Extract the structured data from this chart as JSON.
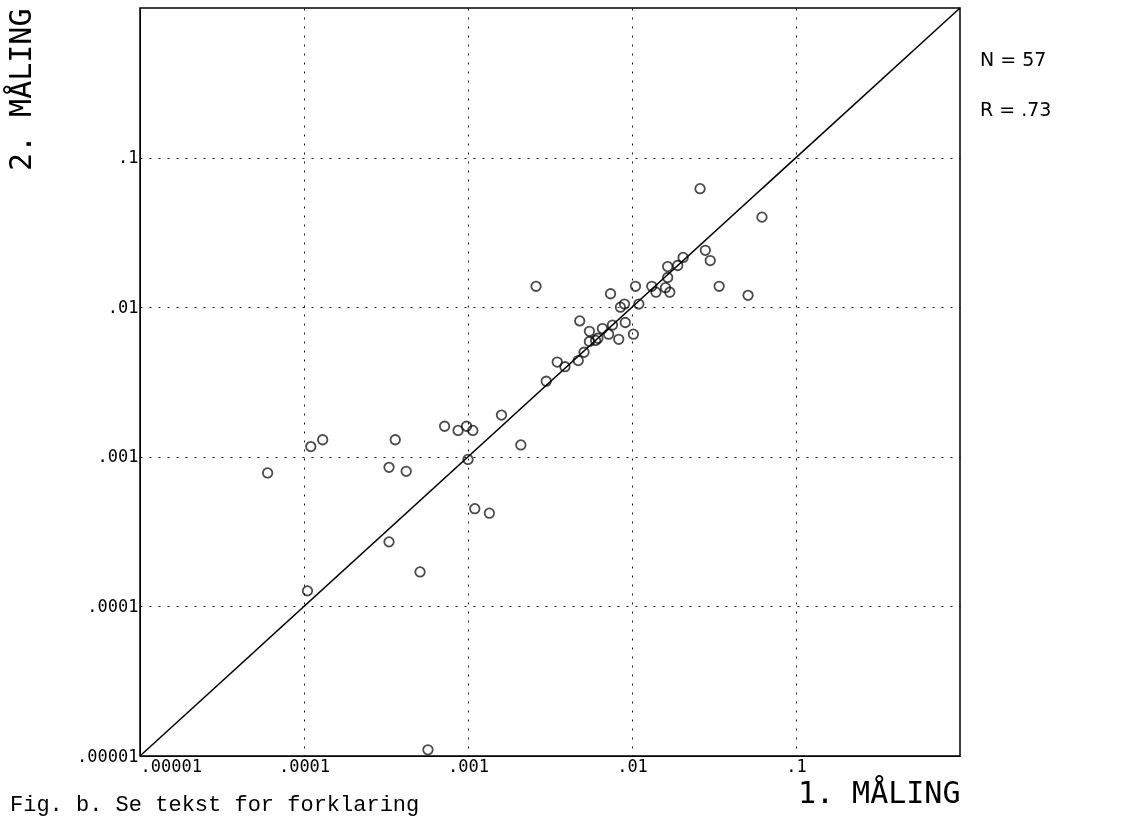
{
  "chart_data": {
    "type": "scatter",
    "xlabel": "1. MÅLING",
    "ylabel": "2. MÅLING",
    "log": "xy",
    "grid": true,
    "xlim": [
      1e-05,
      1
    ],
    "ylim": [
      1e-05,
      1
    ],
    "xticks": [
      {
        "value": 1e-05,
        "label": ".00001"
      },
      {
        "value": 0.0001,
        "label": ".0001"
      },
      {
        "value": 0.001,
        "label": ".001"
      },
      {
        "value": 0.01,
        "label": ".01"
      },
      {
        "value": 0.1,
        "label": ".1"
      }
    ],
    "yticks": [
      {
        "value": 1e-05,
        "label": ".00001"
      },
      {
        "value": 0.0001,
        "label": ".0001"
      },
      {
        "value": 0.001,
        "label": ".001"
      },
      {
        "value": 0.01,
        "label": ".01"
      },
      {
        "value": 0.1,
        "label": ".1"
      }
    ],
    "series": [
      {
        "marker": "circle",
        "color": "#000000",
        "x": [
          6e-05,
          0.000105,
          0.00011,
          0.00013,
          0.00033,
          0.00036,
          0.00042,
          0.00033,
          0.00051,
          0.00057,
          0.00072,
          0.00087,
          0.00098,
          0.00107,
          0.001,
          0.0011,
          0.00135,
          0.0016,
          0.0021,
          0.0026,
          0.026,
          0.062,
          0.028,
          0.03,
          0.0205,
          0.019,
          0.0165,
          0.0165,
          0.016,
          0.017,
          0.0132,
          0.014,
          0.0105,
          0.034,
          0.051,
          0.0074,
          0.011,
          0.0085,
          0.009,
          0.0091,
          0.0102,
          0.0048,
          0.0076,
          0.0066,
          0.0055,
          0.0072,
          0.0062,
          0.006,
          0.0055,
          0.0083,
          0.0051,
          0.0047,
          0.0035,
          0.0039,
          0.003
        ],
        "values": [
          0.00078,
          0.000127,
          0.00117,
          0.0013,
          0.00085,
          0.0013,
          0.0008,
          0.00027,
          0.00017,
          1.1e-05,
          0.0016,
          0.0015,
          0.0016,
          0.0015,
          0.00096,
          0.00045,
          0.00042,
          0.0019,
          0.0012,
          0.0138,
          0.062,
          0.04,
          0.024,
          0.0205,
          0.0215,
          0.019,
          0.0187,
          0.0158,
          0.0135,
          0.0126,
          0.0138,
          0.0126,
          0.0138,
          0.0138,
          0.012,
          0.0123,
          0.0105,
          0.01,
          0.0105,
          0.0079,
          0.0066,
          0.0081,
          0.0076,
          0.0072,
          0.0069,
          0.0066,
          0.0062,
          0.006,
          0.0059,
          0.0061,
          0.005,
          0.0044,
          0.0043,
          0.004,
          0.0032
        ]
      },
      {
        "type": "line",
        "color": "#000000",
        "x": [
          1e-05,
          1
        ],
        "values": [
          1e-05,
          1
        ]
      }
    ],
    "annotations": [
      "N = 57",
      "R = .73",
      "Fig. b.  Se tekst for forklaring"
    ]
  }
}
